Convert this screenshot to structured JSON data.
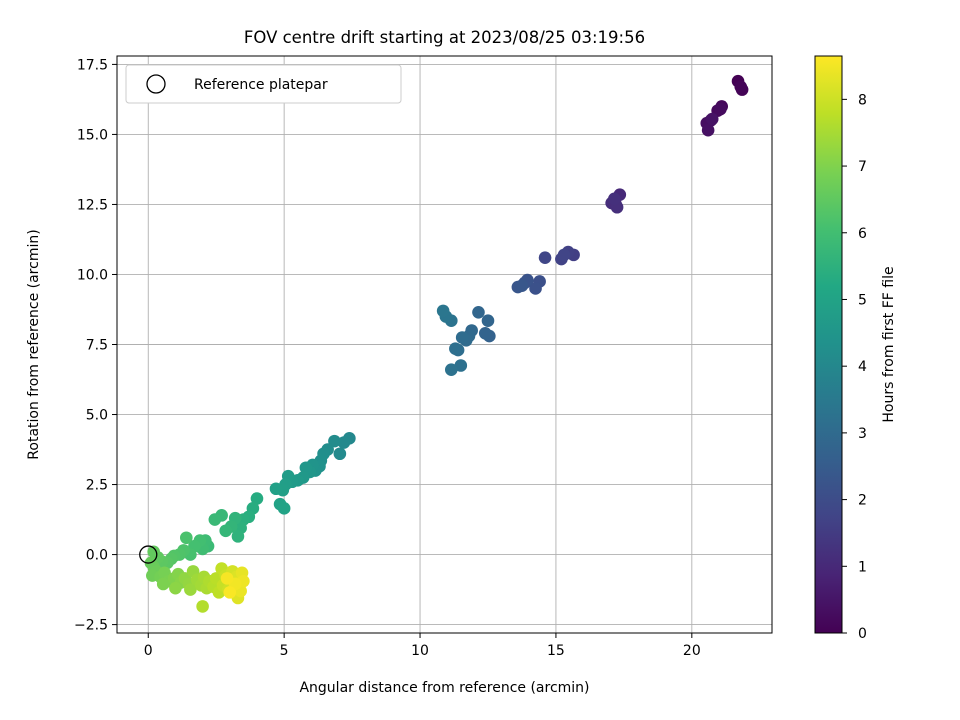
{
  "chart_data": {
    "type": "scatter",
    "title": "FOV centre drift starting at 2023/08/25 03:19:56",
    "xlabel": "Angular distance from reference (arcmin)",
    "ylabel": "Rotation from reference (arcmin)",
    "xlim": [
      -1.15,
      22.95
    ],
    "ylim": [
      -2.8,
      17.8
    ],
    "xticks": [
      0,
      5,
      10,
      15,
      20
    ],
    "xtick_labels": [
      "0",
      "5",
      "10",
      "15",
      "20"
    ],
    "yticks": [
      -2.5,
      0,
      2.5,
      5,
      7.5,
      10,
      12.5,
      15,
      17.5
    ],
    "ytick_labels": [
      "−2.5",
      "0.0",
      "2.5",
      "5.0",
      "7.5",
      "10.0",
      "12.5",
      "15.0",
      "17.5"
    ],
    "grid": true,
    "legend": {
      "placement": "top-left",
      "entries": [
        {
          "label": "Reference platepar",
          "marker": "open-circle"
        }
      ]
    },
    "reference_point": {
      "x": 0,
      "y": 0
    },
    "colorbar": {
      "label": "Hours from first FF file",
      "colormap": "viridis",
      "range": [
        0,
        8.65
      ],
      "ticks": [
        0,
        1,
        2,
        3,
        4,
        5,
        6,
        7,
        8
      ],
      "tick_labels": [
        "0",
        "1",
        "2",
        "3",
        "4",
        "5",
        "6",
        "7",
        "8"
      ]
    },
    "points": [
      {
        "x": 21.7,
        "y": 16.9,
        "c": 0.0
      },
      {
        "x": 21.85,
        "y": 16.6,
        "c": 0.05
      },
      {
        "x": 21.8,
        "y": 16.7,
        "c": 0.08
      },
      {
        "x": 21.1,
        "y": 16.0,
        "c": 0.15
      },
      {
        "x": 20.95,
        "y": 15.85,
        "c": 0.2
      },
      {
        "x": 21.05,
        "y": 15.9,
        "c": 0.25
      },
      {
        "x": 20.7,
        "y": 15.5,
        "c": 0.3
      },
      {
        "x": 20.55,
        "y": 15.4,
        "c": 0.35
      },
      {
        "x": 20.6,
        "y": 15.15,
        "c": 0.4
      },
      {
        "x": 20.75,
        "y": 15.55,
        "c": 0.45
      },
      {
        "x": 17.35,
        "y": 12.85,
        "c": 1.0
      },
      {
        "x": 17.2,
        "y": 12.5,
        "c": 1.05
      },
      {
        "x": 17.05,
        "y": 12.55,
        "c": 1.1
      },
      {
        "x": 17.25,
        "y": 12.4,
        "c": 1.15
      },
      {
        "x": 17.15,
        "y": 12.7,
        "c": 1.2
      },
      {
        "x": 15.65,
        "y": 10.7,
        "c": 1.6
      },
      {
        "x": 15.45,
        "y": 10.8,
        "c": 1.65
      },
      {
        "x": 15.2,
        "y": 10.55,
        "c": 1.7
      },
      {
        "x": 15.3,
        "y": 10.7,
        "c": 1.75
      },
      {
        "x": 14.6,
        "y": 10.6,
        "c": 1.8
      },
      {
        "x": 14.4,
        "y": 9.75,
        "c": 2.1
      },
      {
        "x": 14.25,
        "y": 9.5,
        "c": 2.15
      },
      {
        "x": 13.95,
        "y": 9.8,
        "c": 2.2
      },
      {
        "x": 13.85,
        "y": 9.7,
        "c": 2.25
      },
      {
        "x": 13.6,
        "y": 9.55,
        "c": 2.3
      },
      {
        "x": 13.75,
        "y": 9.6,
        "c": 2.35
      },
      {
        "x": 12.55,
        "y": 7.8,
        "c": 2.7
      },
      {
        "x": 12.4,
        "y": 7.9,
        "c": 2.75
      },
      {
        "x": 12.5,
        "y": 8.35,
        "c": 2.8
      },
      {
        "x": 12.15,
        "y": 8.65,
        "c": 2.85
      },
      {
        "x": 11.9,
        "y": 8.0,
        "c": 2.9
      },
      {
        "x": 11.8,
        "y": 7.8,
        "c": 2.95
      },
      {
        "x": 11.7,
        "y": 7.65,
        "c": 3.0
      },
      {
        "x": 11.55,
        "y": 7.75,
        "c": 3.05
      },
      {
        "x": 11.4,
        "y": 7.3,
        "c": 3.1
      },
      {
        "x": 11.3,
        "y": 7.35,
        "c": 3.15
      },
      {
        "x": 11.5,
        "y": 6.75,
        "c": 3.2
      },
      {
        "x": 11.15,
        "y": 6.6,
        "c": 3.25
      },
      {
        "x": 11.15,
        "y": 8.35,
        "c": 3.3
      },
      {
        "x": 10.95,
        "y": 8.5,
        "c": 3.35
      },
      {
        "x": 10.85,
        "y": 8.7,
        "c": 3.4
      },
      {
        "x": 7.4,
        "y": 4.15,
        "c": 4.0
      },
      {
        "x": 7.2,
        "y": 4.0,
        "c": 4.05
      },
      {
        "x": 7.05,
        "y": 3.6,
        "c": 4.1
      },
      {
        "x": 6.85,
        "y": 4.05,
        "c": 4.15
      },
      {
        "x": 6.6,
        "y": 3.75,
        "c": 4.2
      },
      {
        "x": 6.45,
        "y": 3.6,
        "c": 4.25
      },
      {
        "x": 6.35,
        "y": 3.35,
        "c": 4.3
      },
      {
        "x": 6.3,
        "y": 3.15,
        "c": 4.35
      },
      {
        "x": 6.15,
        "y": 3.0,
        "c": 4.4
      },
      {
        "x": 6.05,
        "y": 3.2,
        "c": 4.45
      },
      {
        "x": 5.95,
        "y": 2.95,
        "c": 4.5
      },
      {
        "x": 5.8,
        "y": 3.1,
        "c": 4.55
      },
      {
        "x": 5.7,
        "y": 2.75,
        "c": 4.6
      },
      {
        "x": 5.5,
        "y": 2.65,
        "c": 4.65
      },
      {
        "x": 5.3,
        "y": 2.6,
        "c": 4.7
      },
      {
        "x": 5.15,
        "y": 2.8,
        "c": 4.75
      },
      {
        "x": 5.05,
        "y": 2.5,
        "c": 4.8
      },
      {
        "x": 4.95,
        "y": 2.3,
        "c": 4.85
      },
      {
        "x": 4.7,
        "y": 2.35,
        "c": 4.9
      },
      {
        "x": 4.85,
        "y": 1.8,
        "c": 4.95
      },
      {
        "x": 5.0,
        "y": 1.65,
        "c": 5.0
      },
      {
        "x": 4.0,
        "y": 2.0,
        "c": 5.3
      },
      {
        "x": 3.85,
        "y": 1.65,
        "c": 5.35
      },
      {
        "x": 3.7,
        "y": 1.35,
        "c": 5.4
      },
      {
        "x": 3.5,
        "y": 1.25,
        "c": 5.45
      },
      {
        "x": 3.4,
        "y": 0.95,
        "c": 5.5
      },
      {
        "x": 3.3,
        "y": 0.65,
        "c": 5.55
      },
      {
        "x": 3.2,
        "y": 1.3,
        "c": 5.6
      },
      {
        "x": 3.05,
        "y": 1.0,
        "c": 5.65
      },
      {
        "x": 2.85,
        "y": 0.85,
        "c": 5.7
      },
      {
        "x": 2.7,
        "y": 1.4,
        "c": 5.75
      },
      {
        "x": 2.45,
        "y": 1.25,
        "c": 5.8
      },
      {
        "x": 2.2,
        "y": 0.3,
        "c": 5.85
      },
      {
        "x": 2.1,
        "y": 0.5,
        "c": 5.9
      },
      {
        "x": 2.0,
        "y": 0.2,
        "c": 5.95
      },
      {
        "x": 1.9,
        "y": 0.5,
        "c": 6.0
      },
      {
        "x": 1.7,
        "y": 0.3,
        "c": 6.05
      },
      {
        "x": 1.55,
        "y": 0.0,
        "c": 6.1
      },
      {
        "x": 1.4,
        "y": 0.6,
        "c": 6.15
      },
      {
        "x": 1.3,
        "y": 0.15,
        "c": 6.2
      },
      {
        "x": 1.15,
        "y": 0.0,
        "c": 6.25
      },
      {
        "x": 0.95,
        "y": -0.05,
        "c": 6.3
      },
      {
        "x": 0.85,
        "y": -0.15,
        "c": 6.35
      },
      {
        "x": 0.7,
        "y": -0.3,
        "c": 6.4
      },
      {
        "x": 0.5,
        "y": -0.25,
        "c": 6.45
      },
      {
        "x": 0.35,
        "y": -0.1,
        "c": 6.5
      },
      {
        "x": 0.2,
        "y": 0.1,
        "c": 6.55
      },
      {
        "x": 0.1,
        "y": -0.3,
        "c": 6.6
      },
      {
        "x": 0.2,
        "y": -0.45,
        "c": 6.65
      },
      {
        "x": 0.3,
        "y": -0.6,
        "c": 6.7
      },
      {
        "x": 0.15,
        "y": -0.75,
        "c": 6.75
      },
      {
        "x": 0.45,
        "y": -0.8,
        "c": 6.8
      },
      {
        "x": 0.6,
        "y": -0.65,
        "c": 6.85
      },
      {
        "x": 0.75,
        "y": -0.95,
        "c": 6.9
      },
      {
        "x": 0.55,
        "y": -1.05,
        "c": 6.95
      },
      {
        "x": 0.95,
        "y": -0.85,
        "c": 7.0
      },
      {
        "x": 1.1,
        "y": -0.7,
        "c": 7.05
      },
      {
        "x": 1.2,
        "y": -1.0,
        "c": 7.1
      },
      {
        "x": 1.0,
        "y": -1.2,
        "c": 7.15
      },
      {
        "x": 1.35,
        "y": -0.85,
        "c": 7.2
      },
      {
        "x": 1.5,
        "y": -1.05,
        "c": 7.25
      },
      {
        "x": 1.65,
        "y": -0.6,
        "c": 7.3
      },
      {
        "x": 1.55,
        "y": -1.25,
        "c": 7.35
      },
      {
        "x": 1.8,
        "y": -0.9,
        "c": 7.4
      },
      {
        "x": 1.95,
        "y": -1.1,
        "c": 7.45
      },
      {
        "x": 2.05,
        "y": -0.8,
        "c": 7.5
      },
      {
        "x": 2.15,
        "y": -1.2,
        "c": 7.55
      },
      {
        "x": 2.25,
        "y": -0.95,
        "c": 7.6
      },
      {
        "x": 2.0,
        "y": -1.85,
        "c": 7.65
      },
      {
        "x": 2.4,
        "y": -1.15,
        "c": 7.7
      },
      {
        "x": 2.5,
        "y": -0.85,
        "c": 7.75
      },
      {
        "x": 2.6,
        "y": -1.35,
        "c": 7.8
      },
      {
        "x": 2.7,
        "y": -0.5,
        "c": 7.85
      },
      {
        "x": 2.75,
        "y": -1.1,
        "c": 7.9
      },
      {
        "x": 2.85,
        "y": -0.75,
        "c": 7.95
      },
      {
        "x": 2.95,
        "y": -1.25,
        "c": 8.0
      },
      {
        "x": 3.05,
        "y": -0.95,
        "c": 8.05
      },
      {
        "x": 3.1,
        "y": -0.6,
        "c": 8.1
      },
      {
        "x": 3.15,
        "y": -1.2,
        "c": 8.15
      },
      {
        "x": 3.25,
        "y": -0.8,
        "c": 8.2
      },
      {
        "x": 3.3,
        "y": -1.55,
        "c": 8.25
      },
      {
        "x": 3.35,
        "y": -1.0,
        "c": 8.3
      },
      {
        "x": 3.45,
        "y": -0.65,
        "c": 8.35
      },
      {
        "x": 3.4,
        "y": -1.3,
        "c": 8.4
      },
      {
        "x": 3.5,
        "y": -0.95,
        "c": 8.45
      },
      {
        "x": 3.2,
        "y": -1.05,
        "c": 8.5
      },
      {
        "x": 2.9,
        "y": -0.85,
        "c": 8.55
      },
      {
        "x": 3.0,
        "y": -1.35,
        "c": 8.6
      }
    ]
  }
}
